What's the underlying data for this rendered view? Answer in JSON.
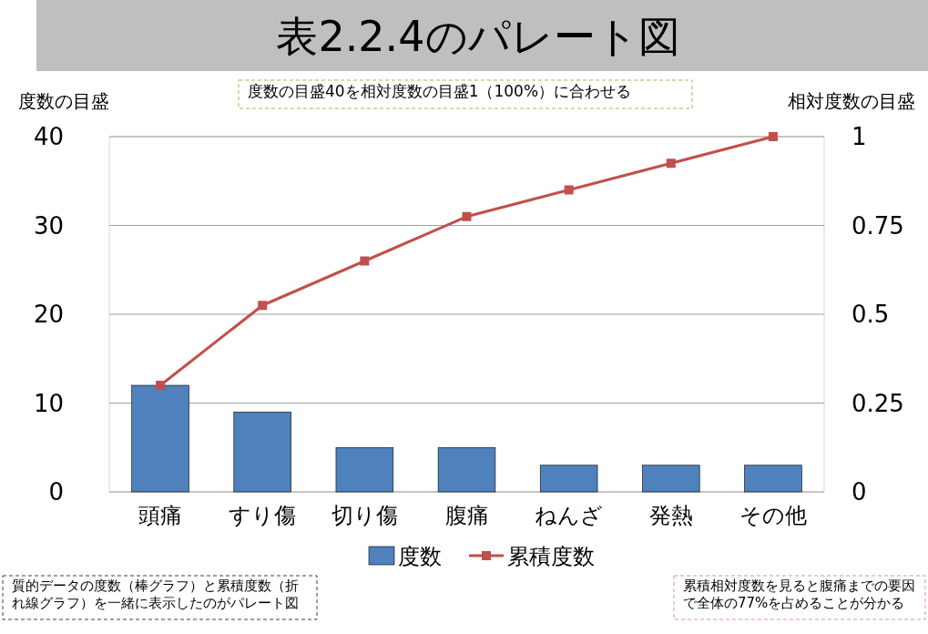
{
  "chart_data": {
    "type": "bar",
    "title": "表2.2.4のパレート図",
    "ylabel": "度数の目盛",
    "y2label": "相対度数の目盛",
    "categories": [
      "頭痛",
      "すり傷",
      "切り傷",
      "腹痛",
      "ねんざ",
      "発熱",
      "その他"
    ],
    "series": [
      {
        "name": "度数",
        "color": "#4f81bd",
        "values": [
          12,
          9,
          5,
          5,
          3,
          3,
          3
        ]
      },
      {
        "name": "累積度数",
        "type": "line",
        "color": "#c0504d",
        "marker": "square",
        "values": [
          12,
          21,
          26,
          31,
          34,
          37,
          40
        ]
      }
    ],
    "ylim": [
      0,
      40
    ],
    "yticks": [
      0,
      10,
      20,
      30,
      40
    ],
    "y2lim": [
      0,
      1
    ],
    "y2ticks": [
      0,
      0.25,
      0.5,
      0.75,
      1
    ],
    "grid": "y",
    "legend": "bottom",
    "annotations": [
      "度数の目盛40を相対度数の目盛1（100%）に合わせる",
      "質的データの度数（棒グラフ）と累積度数（折れ線グラフ）を一緒に表示したのがパレート図",
      "累積相対度数を見ると腹痛までの要因で全体の77%を占めることが分かる"
    ]
  }
}
